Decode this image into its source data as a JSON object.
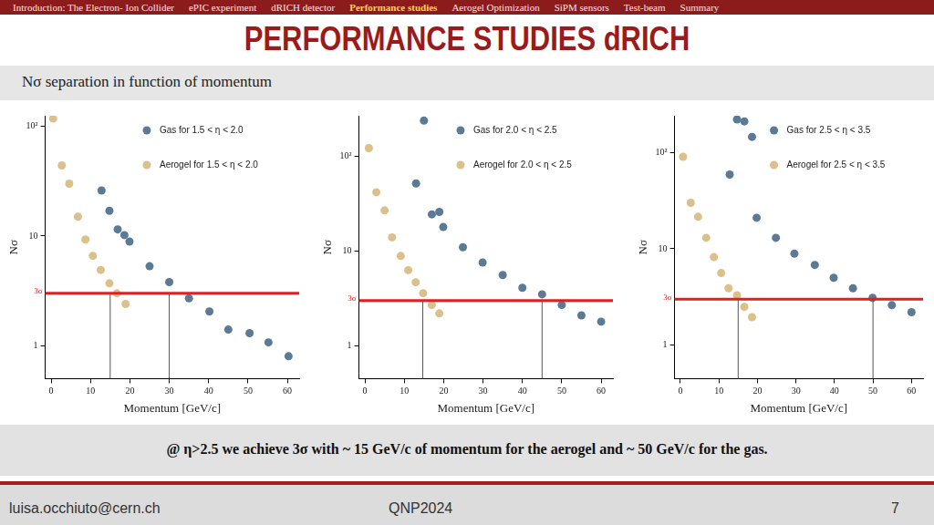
{
  "nav": {
    "items": [
      "Introduction: The Electron- Ion Collider",
      "ePIC experiment",
      "dRICH detector",
      "Performance studies",
      "Aerogel Optimization",
      "SiPM sensors",
      "Test-beam",
      "Summary"
    ],
    "current": "Performance studies"
  },
  "title": "PERFORMANCE STUDIES dRICH",
  "subtitle": "Nσ separation in function of momentum",
  "conclusion": "@ η>2.5 we achieve 3σ with ~ 15 GeV/c of momentum for the aerogel and ~ 50 GeV/c for the gas.",
  "footer": {
    "email": "luisa.occhiuto@cern.ch",
    "conference": "QNP2024",
    "page": 7
  },
  "chart_data": [
    {
      "type": "scatter",
      "x_label": "Momentum [GeV/c]",
      "y_label": "Nσ",
      "log": "y",
      "grid": false,
      "legend": "upper right",
      "xlim": [
        -1.5,
        63
      ],
      "xticks": [
        0,
        10,
        20,
        30,
        40,
        50,
        60
      ],
      "ylim": [
        0.5,
        125
      ],
      "yticks": [
        1,
        10,
        {
          "value": 100,
          "label": "10²"
        }
      ],
      "threshold": {
        "value": 3,
        "label": "3σ",
        "color": "#e02020"
      },
      "vlines": [
        15,
        30
      ],
      "series": [
        {
          "name": "Gas for 1.5 < η < 2.0",
          "color": "#5b7a95",
          "marker": "circle",
          "x": [
            12.8,
            14.8,
            16.9,
            18.6,
            19.9,
            25,
            30,
            35,
            40.2,
            45,
            50.4,
            55.2,
            60.3
          ],
          "values": [
            26,
            17,
            11.5,
            10.2,
            8.9,
            5.3,
            3.8,
            2.7,
            2.05,
            1.4,
            1.3,
            1.07,
            0.8
          ]
        },
        {
          "name": "Aerogel for 1.5 < η < 2.0",
          "color": "#dcc08c",
          "marker": "circle",
          "x": [
            0.5,
            2.7,
            4.6,
            6.8,
            8.7,
            10.6,
            12.6,
            14.8,
            16.7,
            18.9
          ],
          "values": [
            118,
            44,
            30,
            15,
            9.3,
            6.6,
            4.9,
            3.7,
            3.0,
            2.4
          ]
        }
      ]
    },
    {
      "type": "scatter",
      "x_label": "Momentum [GeV/c]",
      "y_label": "Nσ",
      "log": "y",
      "grid": false,
      "legend": "upper right",
      "xlim": [
        -1.5,
        63
      ],
      "xticks": [
        0,
        10,
        20,
        30,
        40,
        50,
        60
      ],
      "ylim": [
        0.45,
        270
      ],
      "yticks": [
        1,
        10,
        {
          "value": 100,
          "label": "10²"
        }
      ],
      "threshold": {
        "value": 3,
        "label": "3σ",
        "color": "#e02020"
      },
      "vlines": [
        14.7,
        45
      ],
      "series": [
        {
          "name": "Gas for 2.0 < η < 2.5",
          "color": "#5b7a95",
          "marker": "circle",
          "x": [
            13,
            15,
            17,
            18.9,
            19.9,
            24.9,
            29.9,
            35,
            40,
            45,
            50,
            55,
            60
          ],
          "values": [
            52,
            240,
            24.5,
            26,
            18,
            11,
            7.6,
            5.6,
            4.1,
            3.5,
            2.7,
            2.1,
            1.8
          ]
        },
        {
          "name": "Aerogel for 2.0 < η < 2.5",
          "color": "#dcc08c",
          "marker": "circle",
          "x": [
            1,
            2.9,
            5,
            6.9,
            9.1,
            11,
            12.9,
            14.8,
            17,
            18.9
          ],
          "values": [
            123,
            42,
            27,
            14,
            8.9,
            6.3,
            4.7,
            3.6,
            2.7,
            2.2
          ]
        }
      ]
    },
    {
      "type": "scatter",
      "x_label": "Momentum [GeV/c]",
      "y_label": "Nσ",
      "log": "y",
      "grid": false,
      "legend": "upper right",
      "xlim": [
        -1.5,
        63
      ],
      "xticks": [
        0,
        10,
        20,
        30,
        40,
        50,
        60
      ],
      "ylim": [
        0.45,
        240
      ],
      "yticks": [
        1,
        10,
        {
          "value": 100,
          "label": "10²"
        }
      ],
      "threshold": {
        "value": 3,
        "label": "3σ",
        "color": "#e02020"
      },
      "vlines": [
        15,
        50
      ],
      "series": [
        {
          "name": "Gas for 2.5 < η < 3.5",
          "color": "#5b7a95",
          "marker": "circle",
          "x": [
            12.8,
            14.7,
            16.6,
            18.6,
            19.8,
            24.8,
            29.6,
            34.9,
            39.8,
            44.8,
            49.9,
            54.9,
            60
          ],
          "values": [
            59,
            220,
            210,
            145,
            21,
            13,
            8.9,
            6.8,
            5.0,
            3.9,
            3.1,
            2.6,
            2.2
          ]
        },
        {
          "name": "Aerogel for 2.5 < η < 3.5",
          "color": "#dcc08c",
          "marker": "circle",
          "x": [
            0.7,
            2.7,
            4.6,
            6.7,
            8.7,
            10.6,
            12.5,
            14.7,
            16.6,
            18.6
          ],
          "values": [
            90,
            30,
            21.5,
            13,
            8.2,
            5.6,
            3.9,
            3.3,
            2.5,
            1.95
          ]
        }
      ]
    }
  ]
}
